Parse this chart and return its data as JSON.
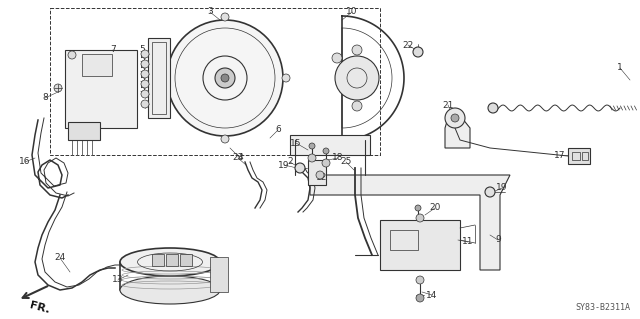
{
  "background_color": "#ffffff",
  "diagram_code": "SY83-B2311A",
  "fr_label": "FR.",
  "line_color": "#333333",
  "label_fontsize": 6.5,
  "diagram_fontsize": 6.0
}
